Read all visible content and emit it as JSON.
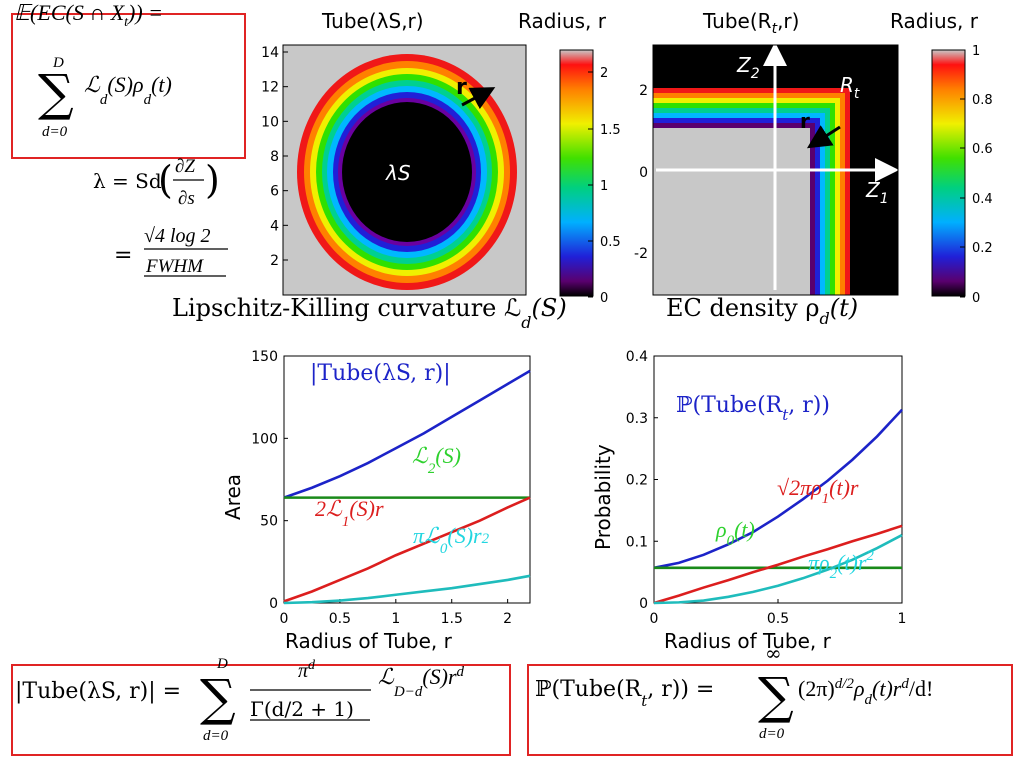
{
  "colors": {
    "blue": "#1c23c8",
    "red": "#dc1e1e",
    "green": "#1a8a1a",
    "cyan": "#1fbcbc",
    "label_green": "#2ed12e",
    "label_cyan": "#22d6e0",
    "box": "#e02424",
    "gray": "#c8c8c8"
  },
  "formulas": {
    "expect_top": "𝔼(EC(S ∩ X",
    "expect_t": "t",
    "expect_end": ")) =",
    "sum_upper": "D",
    "sum_lower": "d=0",
    "sum_body": "ℒ",
    "sum_body_sub": "d",
    "sum_body_rest": "(S)ρ",
    "sum_body_rest_sub": "d",
    "sum_body_end": "(t)",
    "lambda_line": "λ = Sd",
    "lambda_num": "∂Z",
    "lambda_den": "∂s",
    "lambda_eq2": "=",
    "lambda_root": "√4 log 2",
    "lambda_fwhm": "FWHM",
    "tube_area_lhs": "|Tube(λS, r)| =",
    "tube_area_sum_upper": "D",
    "tube_area_sum_lower": "d=0",
    "tube_area_num": "π",
    "tube_area_num_sup": "d",
    "tube_area_den": "Γ(d/2 + 1)",
    "tube_area_L": "ℒ",
    "tube_area_L_sub": "D−d",
    "tube_area_rest": "(S)r",
    "tube_area_rest_sup": "d",
    "tube_prob_lhs": "ℙ(Tube(R",
    "tube_prob_lhs_sub": "t",
    "tube_prob_lhs2": ", r)) =",
    "tube_prob_sum_upper": "∞",
    "tube_prob_sum_lower": "d=0",
    "tube_prob_body": "(2π)",
    "tube_prob_body_sup": "d/2",
    "tube_prob_rho": "ρ",
    "tube_prob_rho_sub": "d",
    "tube_prob_rest": "(t)r",
    "tube_prob_rest_sup": "d",
    "tube_prob_end": "/d!"
  },
  "captions": {
    "lk_curvature": "Lipschitz-Killing curvature ℒ",
    "lk_sub": "d",
    "lk_end": "(S)",
    "ec_density": "EC density ρ",
    "ec_sub": "d",
    "ec_end": "(t)"
  },
  "panels": {
    "tube_s_title": "Tube(λS,r)",
    "radius_title_left": "Radius, r",
    "tube_rt_title": "Tube(R",
    "tube_rt_title_sub": "t",
    "tube_rt_title_end": ",r)",
    "radius_title_right": "Radius, r",
    "lambda_s_label": "λS",
    "r_label_left": "r",
    "r_label_right": "r",
    "z2_label": "Z",
    "z2_sub": "2",
    "z1_label": "Z",
    "z1_sub": "1",
    "rt_label": "R",
    "rt_sub": "t",
    "left_image_yticks": [
      "14",
      "12",
      "10",
      "8",
      "6",
      "4",
      "2"
    ],
    "left_colorbar_ticks": [
      "2",
      "1.5",
      "1",
      "0.5",
      "0"
    ],
    "right_image_yticks": [
      "2",
      "0",
      "-2"
    ],
    "right_colorbar_ticks": [
      "1",
      "0.8",
      "0.6",
      "0.4",
      "0.2",
      "0"
    ]
  },
  "chart_data": [
    {
      "type": "line",
      "xlabel": "Radius of Tube, r",
      "ylabel": "Area",
      "xlim": [
        0,
        2.2
      ],
      "ylim": [
        0,
        150
      ],
      "xticks": [
        "0",
        "0.5",
        "1",
        "1.5",
        "2"
      ],
      "yticks": [
        "0",
        "50",
        "100",
        "150"
      ],
      "x": [
        0,
        0.25,
        0.5,
        0.75,
        1.0,
        1.25,
        1.5,
        1.75,
        2.0,
        2.2
      ],
      "series": [
        {
          "name": "|Tube(λS, r)|",
          "color": "blue",
          "values": [
            64,
            70,
            77,
            85,
            94,
            103,
            113,
            123,
            133,
            141
          ]
        },
        {
          "name": "ℒ2(S)",
          "color": "green",
          "values": [
            64,
            64,
            64,
            64,
            64,
            64,
            64,
            64,
            64,
            64
          ]
        },
        {
          "name": "2ℒ1(S)r",
          "color": "red",
          "values": [
            1,
            7,
            14,
            21,
            29,
            36,
            43,
            50,
            58,
            64
          ]
        },
        {
          "name": "πℒ0(S)r2",
          "color": "cyan",
          "values": [
            0,
            0.5,
            1.5,
            3,
            5,
            7,
            9,
            11.5,
            14,
            16.5
          ]
        }
      ],
      "annotations": [
        {
          "text": "|Tube(λS, r)|",
          "color": "blue"
        },
        {
          "text": "ℒ",
          "sub": "2",
          "rest": "(S)",
          "color": "label_green"
        },
        {
          "text": "2ℒ",
          "sub": "1",
          "rest": "(S)r",
          "color": "red"
        },
        {
          "text": "πℒ",
          "sub": "0",
          "rest": "(S)r",
          "sup": "2",
          "color": "label_cyan"
        }
      ]
    },
    {
      "type": "line",
      "xlabel": "Radius of Tube, r",
      "ylabel": "Probability",
      "xlim": [
        0,
        1
      ],
      "ylim": [
        0,
        0.4
      ],
      "xticks": [
        "0",
        "0.5",
        "1"
      ],
      "yticks": [
        "0",
        "0.1",
        "0.2",
        "0.3",
        "0.4"
      ],
      "x": [
        0,
        0.1,
        0.2,
        0.3,
        0.4,
        0.5,
        0.6,
        0.7,
        0.8,
        0.9,
        1.0
      ],
      "series": [
        {
          "name": "ℙ(Tube(Rt, r))",
          "color": "blue",
          "values": [
            0.057,
            0.065,
            0.078,
            0.095,
            0.115,
            0.14,
            0.168,
            0.198,
            0.232,
            0.27,
            0.313
          ]
        },
        {
          "name": "ρ0(t)",
          "color": "green",
          "values": [
            0.057,
            0.057,
            0.057,
            0.057,
            0.057,
            0.057,
            0.057,
            0.057,
            0.057,
            0.057,
            0.057
          ]
        },
        {
          "name": "√2πρ1(t)r",
          "color": "red",
          "values": [
            0,
            0.012,
            0.025,
            0.037,
            0.05,
            0.062,
            0.075,
            0.087,
            0.1,
            0.112,
            0.125
          ]
        },
        {
          "name": "πρ2(t)r2",
          "color": "cyan",
          "values": [
            0,
            0.001,
            0.004,
            0.01,
            0.018,
            0.028,
            0.04,
            0.054,
            0.07,
            0.089,
            0.11
          ]
        }
      ],
      "annotations": [
        {
          "text": "ℙ(Tube(R",
          "sub": "t",
          "rest": ", r))",
          "color": "blue"
        },
        {
          "text": "√2πρ",
          "sub": "1",
          "rest": "(t)r",
          "color": "red"
        },
        {
          "text": "ρ",
          "sub": "0",
          "rest": "(t)",
          "color": "label_green"
        },
        {
          "text": "πρ",
          "sub": "2",
          "rest": "(t)r",
          "sup": "2",
          "color": "label_cyan"
        }
      ]
    }
  ]
}
